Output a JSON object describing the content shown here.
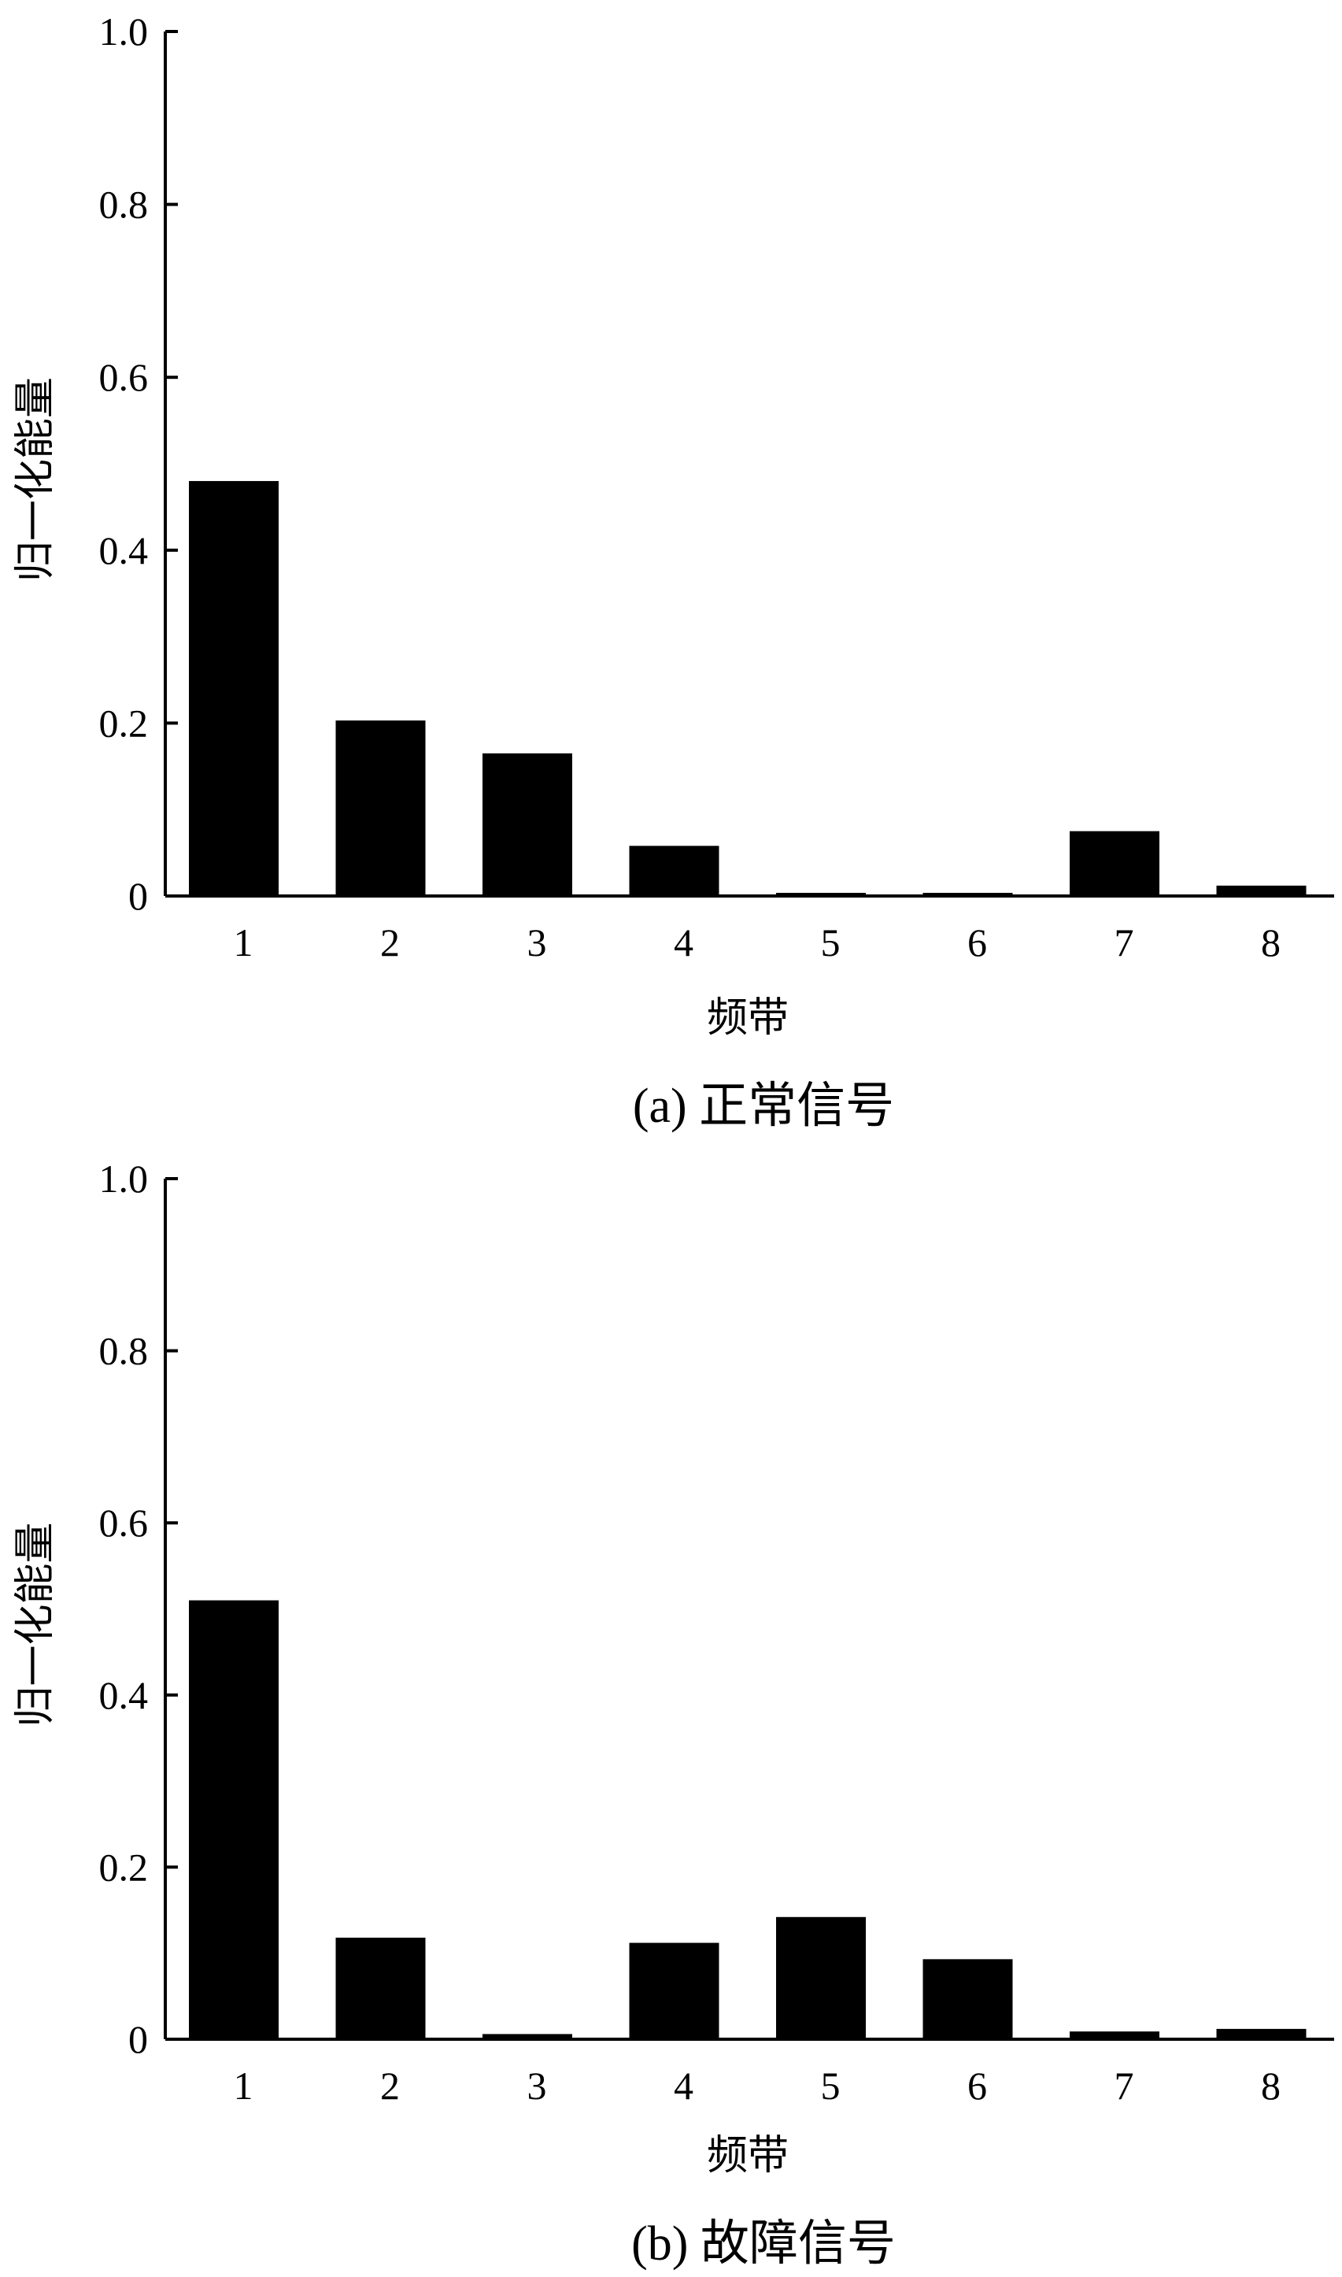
{
  "chart_data": [
    {
      "type": "bar",
      "caption": "(a)  正常信号",
      "xlabel": "频带",
      "ylabel": "归一化能量",
      "categories": [
        "1",
        "2",
        "3",
        "4",
        "5",
        "6",
        "7",
        "8"
      ],
      "values": [
        0.48,
        0.203,
        0.165,
        0.058,
        0.002,
        0.002,
        0.075,
        0.012
      ],
      "ylim": [
        0,
        1.0
      ],
      "yticks": [
        "0",
        "0.2",
        "0.4",
        "0.6",
        "0.8",
        "1.0"
      ],
      "grid": false,
      "bar_color": "#000000"
    },
    {
      "type": "bar",
      "caption": "(b)  故障信号",
      "xlabel": "频带",
      "ylabel": "归一化能量",
      "categories": [
        "1",
        "2",
        "3",
        "4",
        "5",
        "6",
        "7",
        "8"
      ],
      "values": [
        0.51,
        0.118,
        0.006,
        0.112,
        0.142,
        0.093,
        0.009,
        0.012
      ],
      "ylim": [
        0,
        1.0
      ],
      "yticks": [
        "0",
        "0.2",
        "0.4",
        "0.6",
        "0.8",
        "1.0"
      ],
      "grid": false,
      "bar_color": "#000000"
    }
  ]
}
